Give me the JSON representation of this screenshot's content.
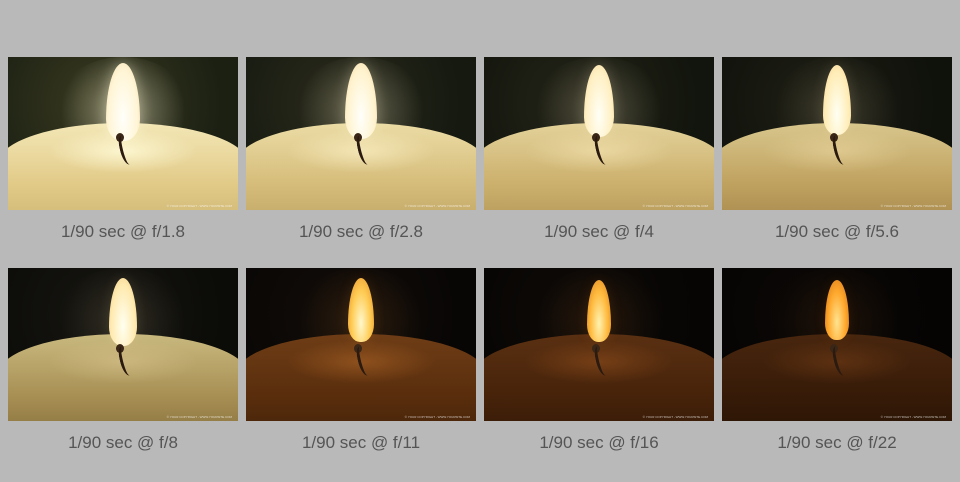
{
  "captions": [
    "1/90 sec @ f/1.8",
    "1/90 sec @ f/2.8",
    "1/90 sec @ f/4",
    "1/90 sec @ f/5.6",
    "1/90 sec @ f/8",
    "1/90 sec @ f/11",
    "1/90 sec @ f/16",
    "1/90 sec @ f/22"
  ],
  "photo_credit": "© YOUR COPYRIGHT - WWW.YOURSITE.COM",
  "colors": {
    "background": "#b9b9b9",
    "caption_text": "#555555"
  }
}
